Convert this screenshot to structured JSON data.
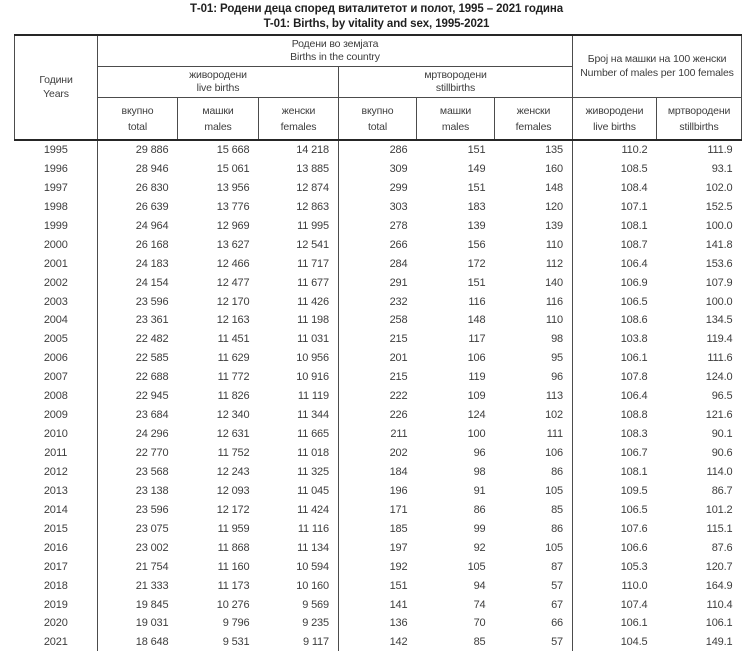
{
  "page": {
    "title_mk": "Т-01: Родени деца според виталитетот и полот, 1995 – 2021 година",
    "title_en": "T-01: Births, by vitality and sex, 1995-2021"
  },
  "colors": {
    "thin_line": "#4c4c4c",
    "thick_line": "#262626",
    "text": "#3d3d3d",
    "background": "#ffffff"
  },
  "table": {
    "header": {
      "years_mk": "Години",
      "years_en": "Years",
      "births_group_mk": "Родени во земјата",
      "births_group_en": "Births in the country",
      "ratio_group_mk": "Број на машки на 100 женски",
      "ratio_group_en": "Number of males per 100 females",
      "live_mk": "живородени",
      "live_en": "live births",
      "still_mk": "мртвородени",
      "still_en": "stillbirths",
      "total_mk": "вкупно",
      "total_en": "total",
      "males_mk": "машки",
      "males_en": "males",
      "females_mk": "женски",
      "females_en": "females"
    },
    "columns": [
      "year",
      "live_total",
      "live_males",
      "live_females",
      "still_total",
      "still_males",
      "still_females",
      "ratio_live",
      "ratio_still"
    ],
    "rows": [
      [
        "1995",
        "29 886",
        "15 668",
        "14 218",
        "286",
        "151",
        "135",
        "110.2",
        "111.9"
      ],
      [
        "1996",
        "28 946",
        "15 061",
        "13 885",
        "309",
        "149",
        "160",
        "108.5",
        "93.1"
      ],
      [
        "1997",
        "26 830",
        "13 956",
        "12 874",
        "299",
        "151",
        "148",
        "108.4",
        "102.0"
      ],
      [
        "1998",
        "26 639",
        "13 776",
        "12 863",
        "303",
        "183",
        "120",
        "107.1",
        "152.5"
      ],
      [
        "1999",
        "24 964",
        "12 969",
        "11 995",
        "278",
        "139",
        "139",
        "108.1",
        "100.0"
      ],
      [
        "2000",
        "26 168",
        "13 627",
        "12 541",
        "266",
        "156",
        "110",
        "108.7",
        "141.8"
      ],
      [
        "2001",
        "24 183",
        "12 466",
        "11 717",
        "284",
        "172",
        "112",
        "106.4",
        "153.6"
      ],
      [
        "2002",
        "24 154",
        "12 477",
        "11 677",
        "291",
        "151",
        "140",
        "106.9",
        "107.9"
      ],
      [
        "2003",
        "23 596",
        "12 170",
        "11 426",
        "232",
        "116",
        "116",
        "106.5",
        "100.0"
      ],
      [
        "2004",
        "23 361",
        "12 163",
        "11 198",
        "258",
        "148",
        "110",
        "108.6",
        "134.5"
      ],
      [
        "2005",
        "22 482",
        "11 451",
        "11 031",
        "215",
        "117",
        "98",
        "103.8",
        "119.4"
      ],
      [
        "2006",
        "22 585",
        "11 629",
        "10 956",
        "201",
        "106",
        "95",
        "106.1",
        "111.6"
      ],
      [
        "2007",
        "22 688",
        "11 772",
        "10 916",
        "215",
        "119",
        "96",
        "107.8",
        "124.0"
      ],
      [
        "2008",
        "22 945",
        "11 826",
        "11 119",
        "222",
        "109",
        "113",
        "106.4",
        "96.5"
      ],
      [
        "2009",
        "23 684",
        "12 340",
        "11 344",
        "226",
        "124",
        "102",
        "108.8",
        "121.6"
      ],
      [
        "2010",
        "24 296",
        "12 631",
        "11 665",
        "211",
        "100",
        "111",
        "108.3",
        "90.1"
      ],
      [
        "2011",
        "22 770",
        "11 752",
        "11 018",
        "202",
        "96",
        "106",
        "106.7",
        "90.6"
      ],
      [
        "2012",
        "23 568",
        "12 243",
        "11 325",
        "184",
        "98",
        "86",
        "108.1",
        "114.0"
      ],
      [
        "2013",
        "23 138",
        "12 093",
        "11 045",
        "196",
        "91",
        "105",
        "109.5",
        "86.7"
      ],
      [
        "2014",
        "23 596",
        "12 172",
        "11 424",
        "171",
        "86",
        "85",
        "106.5",
        "101.2"
      ],
      [
        "2015",
        "23 075",
        "11 959",
        "11 116",
        "185",
        "99",
        "86",
        "107.6",
        "115.1"
      ],
      [
        "2016",
        "23 002",
        "11 868",
        "11 134",
        "197",
        "92",
        "105",
        "106.6",
        "87.6"
      ],
      [
        "2017",
        "21 754",
        "11 160",
        "10 594",
        "192",
        "105",
        "87",
        "105.3",
        "120.7"
      ],
      [
        "2018",
        "21 333",
        "11 173",
        "10 160",
        "151",
        "94",
        "57",
        "110.0",
        "164.9"
      ],
      [
        "2019",
        "19 845",
        "10 276",
        "9 569",
        "141",
        "74",
        "67",
        "107.4",
        "110.4"
      ],
      [
        "2020",
        "19 031",
        "9 796",
        "9 235",
        "136",
        "70",
        "66",
        "106.1",
        "106.1"
      ],
      [
        "2021",
        "18 648",
        "9 531",
        "9 117",
        "142",
        "85",
        "57",
        "104.5",
        "149.1"
      ]
    ]
  }
}
